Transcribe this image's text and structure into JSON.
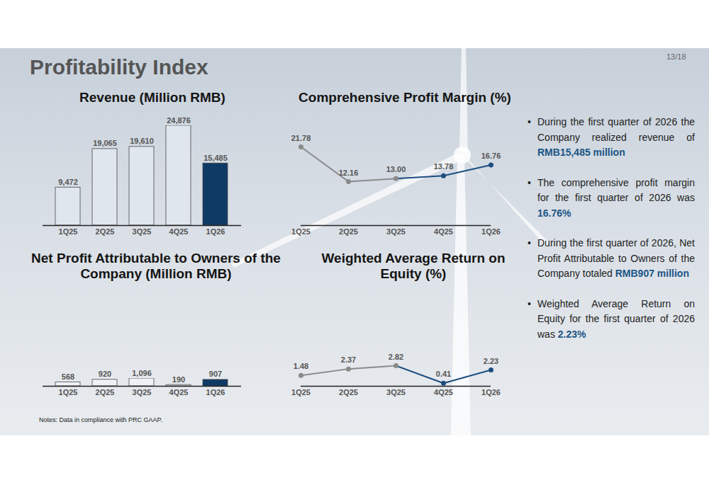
{
  "title": "Profitability Index",
  "page": "13/18",
  "note": "Notes: Data in compliance with PRC GAAP.",
  "bullets": [
    [
      "During the first quarter of 2026 the Company realized revenue of",
      "RMB15,485 million"
    ],
    [
      "The comprehensive profit margin for the first quarter of 2026 was",
      "16.76%"
    ],
    [
      "During the first quarter of 2026, Net Profit Attributable to Owners of the Company totaled",
      "RMB907 million"
    ],
    [
      "Weighted Average Return on Equity for the first quarter of 2026 was",
      "2.23%"
    ]
  ],
  "chart_data": [
    {
      "type": "bar",
      "title": "Revenue (Million RMB)",
      "categories": [
        "1Q25",
        "2Q25",
        "3Q25",
        "4Q25",
        "1Q26"
      ],
      "values": [
        9472,
        19065,
        19610,
        24876,
        15485
      ],
      "value_labels": [
        "9,472",
        "19,065",
        "19,610",
        "24,876",
        "15,485"
      ],
      "colors": [
        "#dfe6ee",
        "#dfe6ee",
        "#dfe6ee",
        "#dfe6ee",
        "#0e3a66"
      ],
      "ylim": [
        0,
        24876
      ],
      "data_labels": true,
      "tick_labels": "x"
    },
    {
      "type": "line",
      "title": "Comprehensive Profit Margin (%)",
      "categories": [
        "1Q25",
        "2Q25",
        "3Q25",
        "4Q25",
        "1Q26"
      ],
      "values": [
        21.78,
        12.16,
        13.0,
        13.78,
        16.76
      ],
      "value_labels": [
        "21.78",
        "12.16",
        "13.00",
        "13.78",
        "16.76"
      ],
      "colors": [
        "#8a8a8a",
        "#8a8a8a",
        "#8a8a8a",
        "#1d4e80",
        "#1d4e80"
      ],
      "marker": "circle",
      "ylim": [
        0,
        21.78
      ],
      "data_labels": true,
      "tick_labels": "x"
    },
    {
      "type": "bar",
      "title": "Net Profit Attributable to Owners of the Company (Million RMB)",
      "categories": [
        "1Q25",
        "2Q25",
        "3Q25",
        "4Q25",
        "1Q26"
      ],
      "values": [
        568,
        920,
        1096,
        190,
        907
      ],
      "value_labels": [
        "568",
        "920",
        "1,096",
        "190",
        "907"
      ],
      "colors": [
        "#eef1f5",
        "#eef1f5",
        "#eef1f5",
        "#eef1f5",
        "#0e3a66"
      ],
      "ylim": [
        0,
        1096
      ],
      "data_labels": true,
      "tick_labels": "x"
    },
    {
      "type": "line",
      "title": "Weighted Average Return on Equity (%)",
      "categories": [
        "1Q25",
        "2Q25",
        "3Q25",
        "4Q25",
        "1Q26"
      ],
      "values": [
        1.48,
        2.37,
        2.82,
        0.41,
        2.23
      ],
      "value_labels": [
        "1.48",
        "2.37",
        "2.82",
        "0.41",
        "2.23"
      ],
      "colors": [
        "#8a8a8a",
        "#8a8a8a",
        "#8a8a8a",
        "#1d4e80",
        "#1d4e80"
      ],
      "marker": "circle",
      "ylim": [
        0,
        2.82
      ],
      "data_labels": true,
      "tick_labels": "x"
    }
  ]
}
